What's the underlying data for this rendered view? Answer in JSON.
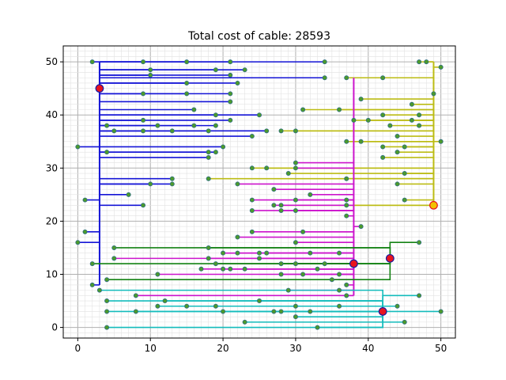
{
  "chart_data": {
    "type": "scatter",
    "title": "Total cost of cable: 28593",
    "xlabel": "",
    "ylabel": "",
    "xlim": [
      -2,
      52
    ],
    "ylim": [
      -2,
      53
    ],
    "x_ticks": [
      0,
      10,
      20,
      30,
      40,
      50
    ],
    "y_ticks": [
      0,
      10,
      20,
      30,
      40,
      50
    ],
    "grid": {
      "major": true,
      "minor": true,
      "minor_step": 1
    },
    "colors": {
      "node_fill": "#4c9a2a",
      "node_stroke": "#2f6f86",
      "hub_fill": "#e8141e",
      "hub_stroke": "#1a1aa0",
      "hub_yellow_fill": "#f2c200",
      "grid_major": "#b0b0b0",
      "grid_minor": "#e2e2e2"
    },
    "hubs": [
      {
        "x": 3,
        "y": 45,
        "series": "blue"
      },
      {
        "x": 49,
        "y": 23,
        "series": "yellow"
      },
      {
        "x": 38,
        "y": 12,
        "series": "magenta"
      },
      {
        "x": 43,
        "y": 13,
        "series": "green"
      },
      {
        "x": 42,
        "y": 3,
        "series": "cyan"
      }
    ],
    "series": [
      {
        "id": "blue",
        "color": "#1414d6",
        "trunk": {
          "x": 3,
          "y": [
            8,
            50
          ]
        },
        "points": [
          [
            2,
            50
          ],
          [
            9,
            50
          ],
          [
            15,
            50
          ],
          [
            21,
            50
          ],
          [
            34,
            50
          ],
          [
            10,
            48.5
          ],
          [
            19,
            48.5
          ],
          [
            23,
            48.5
          ],
          [
            10,
            47.5
          ],
          [
            21,
            47.5
          ],
          [
            34,
            47
          ],
          [
            15,
            46
          ],
          [
            22,
            46
          ],
          [
            9,
            44
          ],
          [
            15,
            44
          ],
          [
            21,
            44
          ],
          [
            21,
            42.5
          ],
          [
            16,
            41
          ],
          [
            25,
            40
          ],
          [
            19,
            40
          ],
          [
            9,
            39
          ],
          [
            21,
            39
          ],
          [
            4,
            38
          ],
          [
            11,
            38
          ],
          [
            16,
            38
          ],
          [
            19,
            38
          ],
          [
            5,
            37
          ],
          [
            9,
            37
          ],
          [
            13,
            37
          ],
          [
            18,
            37
          ],
          [
            26,
            37
          ],
          [
            24,
            36
          ],
          [
            0,
            34
          ],
          [
            20,
            34
          ],
          [
            4,
            33
          ],
          [
            18,
            33
          ],
          [
            19,
            33
          ],
          [
            18,
            32
          ],
          [
            13,
            28
          ],
          [
            13,
            27
          ],
          [
            10,
            27
          ],
          [
            7,
            25
          ],
          [
            1,
            24
          ],
          [
            9,
            23
          ],
          [
            1,
            18
          ],
          [
            0,
            16
          ],
          [
            2,
            8
          ]
        ]
      },
      {
        "id": "yellow",
        "color": "#bcbc14",
        "trunk": {
          "x": 49,
          "y": [
            23,
            50
          ]
        },
        "points": [
          [
            47,
            50
          ],
          [
            48,
            50
          ],
          [
            50,
            49
          ],
          [
            42,
            47
          ],
          [
            37,
            47
          ],
          [
            49,
            44
          ],
          [
            39,
            43
          ],
          [
            46,
            42
          ],
          [
            31,
            41
          ],
          [
            36,
            41
          ],
          [
            42,
            40
          ],
          [
            47,
            40
          ],
          [
            38,
            39
          ],
          [
            40,
            39
          ],
          [
            46,
            39
          ],
          [
            43,
            38
          ],
          [
            47,
            38
          ],
          [
            28,
            37
          ],
          [
            30,
            37
          ],
          [
            44,
            36
          ],
          [
            50,
            35
          ],
          [
            37,
            35
          ],
          [
            39,
            35
          ],
          [
            42,
            34
          ],
          [
            45,
            34
          ],
          [
            44,
            33
          ],
          [
            42,
            32
          ],
          [
            24,
            30
          ],
          [
            26,
            30
          ],
          [
            29,
            29
          ],
          [
            45,
            29
          ],
          [
            18,
            28
          ],
          [
            37,
            28
          ],
          [
            44,
            27
          ],
          [
            45,
            24
          ],
          [
            28,
            23
          ],
          [
            37,
            23
          ]
        ]
      },
      {
        "id": "magenta",
        "color": "#cc14cc",
        "trunk": {
          "x": 38,
          "y": [
            6,
            47
          ]
        },
        "points": [
          [
            30,
            31
          ],
          [
            30,
            30
          ],
          [
            22,
            27
          ],
          [
            27,
            26
          ],
          [
            32,
            25
          ],
          [
            24,
            24
          ],
          [
            30,
            24
          ],
          [
            37,
            24
          ],
          [
            27,
            23
          ],
          [
            28,
            22
          ],
          [
            24,
            22
          ],
          [
            30,
            22
          ],
          [
            37,
            21
          ],
          [
            39,
            19
          ],
          [
            24,
            18
          ],
          [
            31,
            18
          ],
          [
            22,
            17
          ],
          [
            30,
            16
          ],
          [
            20,
            14
          ],
          [
            22,
            14
          ],
          [
            25,
            14
          ],
          [
            26,
            14
          ],
          [
            32,
            14
          ],
          [
            36,
            14
          ],
          [
            18,
            13
          ],
          [
            25,
            13
          ],
          [
            5,
            13
          ],
          [
            30,
            12
          ],
          [
            34,
            12
          ],
          [
            17,
            11
          ],
          [
            20,
            11
          ],
          [
            21,
            11
          ],
          [
            23,
            11
          ],
          [
            33,
            11
          ],
          [
            11,
            10
          ],
          [
            28,
            10
          ],
          [
            31,
            10
          ],
          [
            36,
            10
          ],
          [
            35,
            9
          ],
          [
            37,
            8
          ],
          [
            29,
            7
          ],
          [
            36,
            7
          ],
          [
            8,
            6
          ],
          [
            37,
            6
          ]
        ]
      },
      {
        "id": "green",
        "color": "#148214",
        "hub": [
          43,
          13
        ],
        "points": [
          [
            47,
            16
          ],
          [
            5,
            15
          ],
          [
            18,
            15
          ],
          [
            2,
            12
          ],
          [
            19,
            12
          ],
          [
            28,
            12
          ],
          [
            4,
            9
          ],
          [
            43,
            13
          ]
        ]
      },
      {
        "id": "cyan",
        "color": "#14bcbc",
        "hub": [
          42,
          3
        ],
        "points": [
          [
            3,
            7
          ],
          [
            47,
            6
          ],
          [
            4,
            5
          ],
          [
            12,
            5
          ],
          [
            25,
            5
          ],
          [
            11,
            4
          ],
          [
            15,
            4
          ],
          [
            19,
            4
          ],
          [
            30,
            4
          ],
          [
            36,
            4
          ],
          [
            44,
            4
          ],
          [
            4,
            3
          ],
          [
            8,
            3
          ],
          [
            20,
            3
          ],
          [
            27,
            3
          ],
          [
            28,
            3
          ],
          [
            32,
            3
          ],
          [
            50,
            3
          ],
          [
            30,
            2
          ],
          [
            23,
            1
          ],
          [
            45,
            1
          ],
          [
            4,
            0
          ],
          [
            33,
            0
          ]
        ]
      }
    ]
  }
}
